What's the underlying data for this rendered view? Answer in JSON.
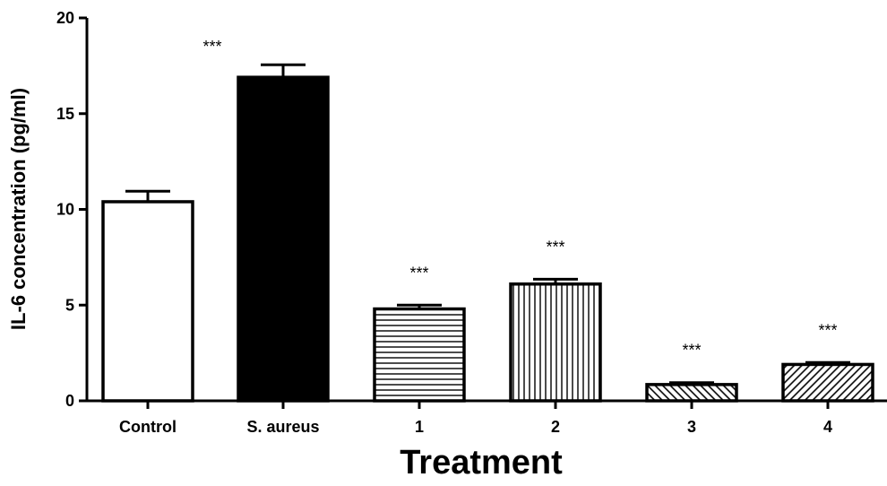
{
  "chart_data": {
    "type": "bar",
    "title": "",
    "xlabel": "Treatment",
    "ylabel": "IL-6 concentration (pg/ml)",
    "ylim": [
      0,
      20
    ],
    "yticks": [
      0,
      5,
      10,
      15,
      20
    ],
    "categories": [
      "Control",
      "S. aureus",
      "1",
      "2",
      "3",
      "4"
    ],
    "values": [
      10.4,
      16.9,
      4.8,
      6.1,
      0.85,
      1.9
    ],
    "errors": [
      0.55,
      0.65,
      0.2,
      0.25,
      0.1,
      0.1
    ],
    "significance": [
      "",
      "***",
      "***",
      "***",
      "***",
      "***"
    ],
    "fills": [
      "white",
      "black",
      "horizontal-lines",
      "vertical-lines",
      "diagonal-lines",
      "diagonal-lines-dense"
    ],
    "grid": false,
    "legend": "none"
  }
}
